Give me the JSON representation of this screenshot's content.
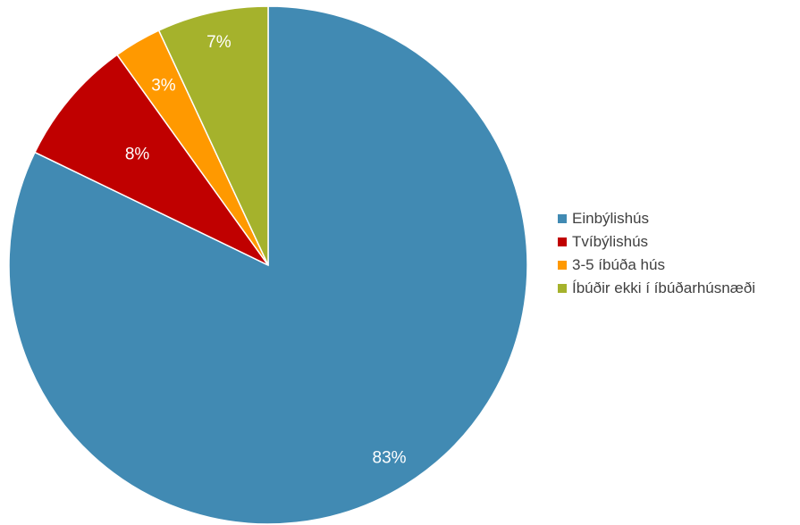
{
  "chart_data": {
    "type": "pie",
    "title": "",
    "categories": [
      "Einbýlishús",
      "Tvíbýlishús",
      "3-5 íbúða hús",
      "Íbúðir ekki í íbúðarhúsnæði"
    ],
    "values": [
      83,
      8,
      3,
      7
    ],
    "data_labels": [
      "83%",
      "8%",
      "3%",
      "7%"
    ],
    "colors": [
      "#418ab3",
      "#c00000",
      "#ff9900",
      "#a5b22c"
    ],
    "start_angle": "12 o'clock",
    "direction": "clockwise",
    "legend": "right"
  }
}
